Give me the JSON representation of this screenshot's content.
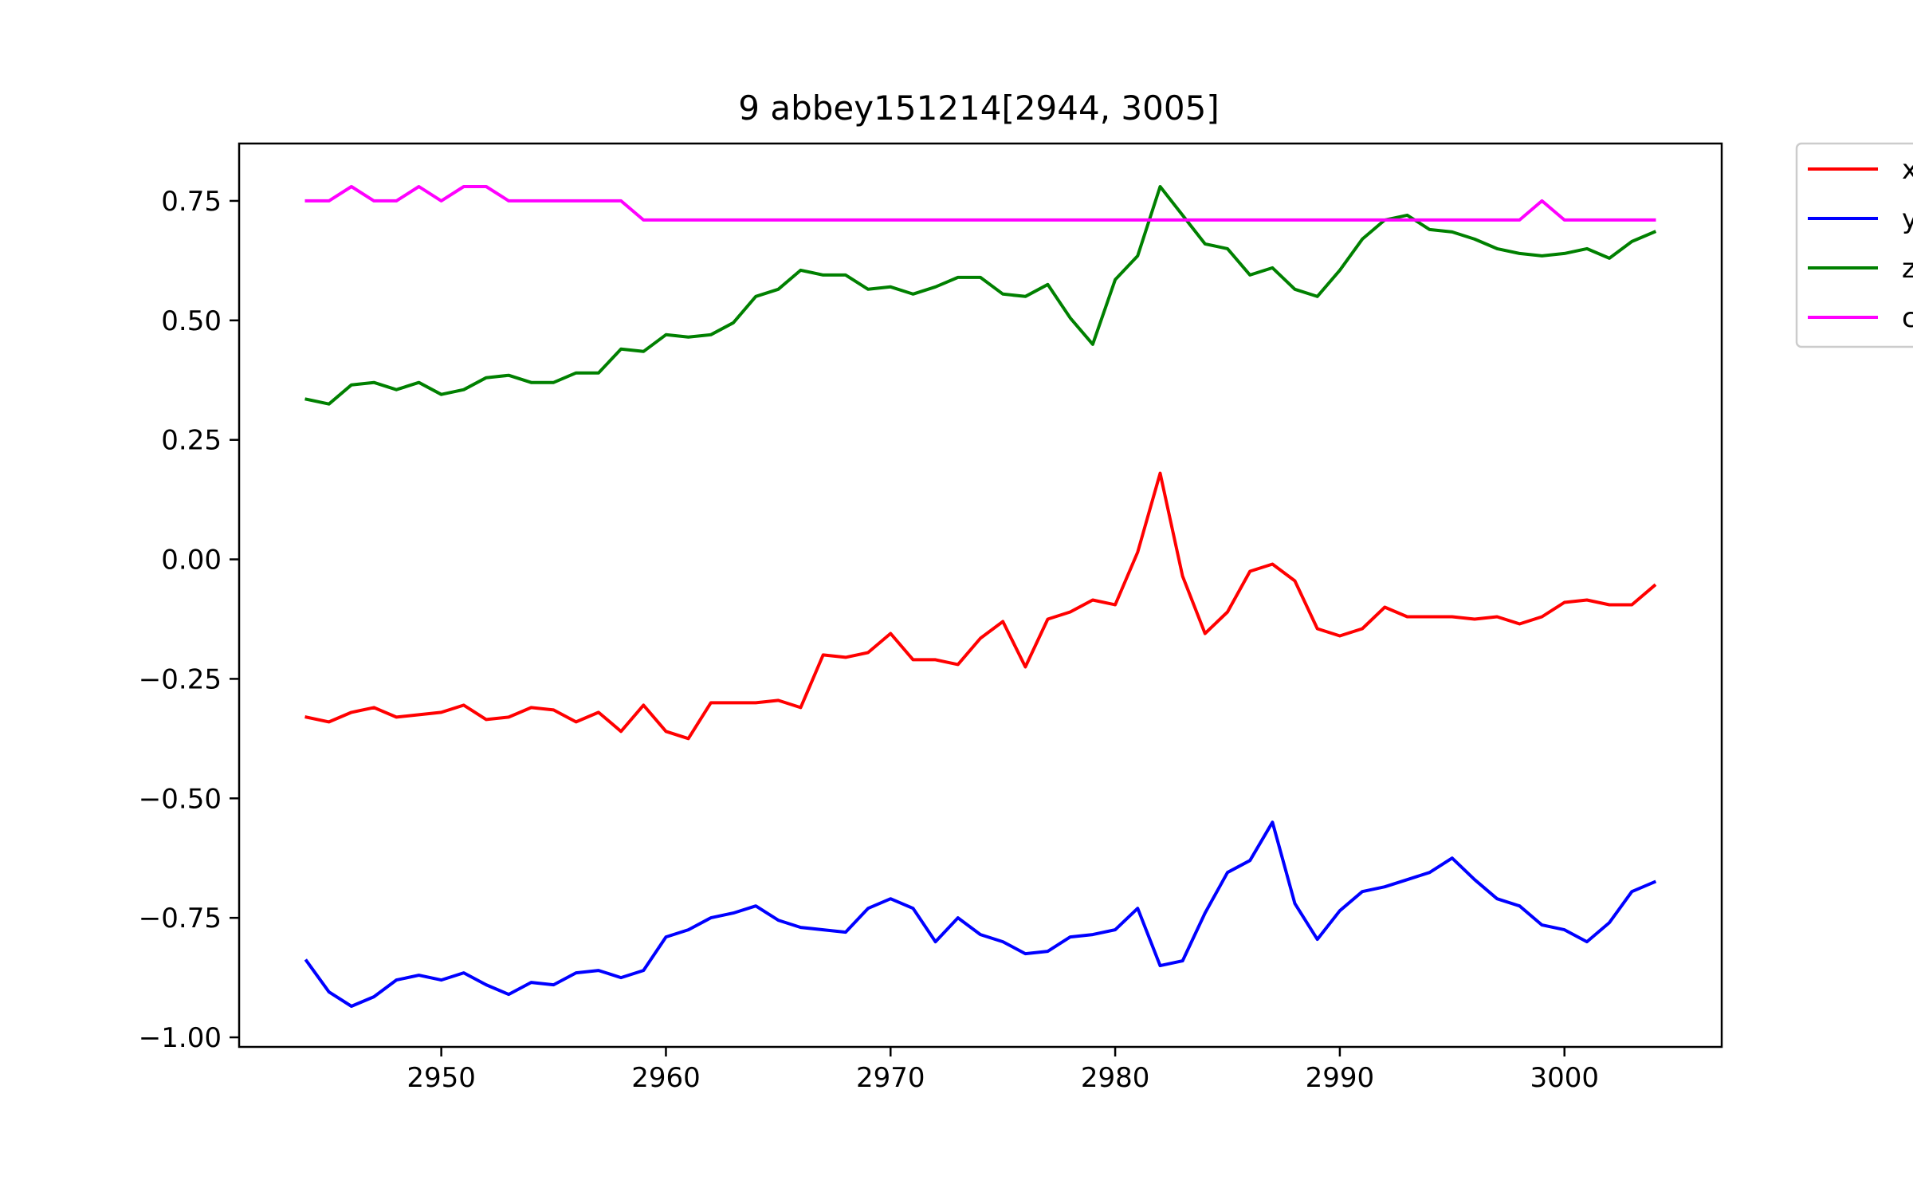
{
  "chart_data": {
    "type": "line",
    "title": "9 abbey151214[2944, 3005]",
    "xlabel": "",
    "ylabel": "",
    "xlim": [
      2941,
      3007
    ],
    "ylim": [
      -1.02,
      0.87
    ],
    "x_ticks": [
      2950,
      2960,
      2970,
      2980,
      2990,
      3000
    ],
    "y_ticks": [
      0.75,
      0.5,
      0.25,
      0.0,
      -0.25,
      -0.5,
      -0.75,
      -1.0
    ],
    "x_tick_labels": [
      "2950",
      "2960",
      "2970",
      "2980",
      "2990",
      "3000"
    ],
    "y_tick_labels": [
      "0.75",
      "0.50",
      "0.25",
      "0.00",
      "−0.25",
      "−0.50",
      "−0.75",
      "−1.00"
    ],
    "grid": false,
    "legend": "outside-top-right",
    "x": [
      2944,
      2945,
      2946,
      2947,
      2948,
      2949,
      2950,
      2951,
      2952,
      2953,
      2954,
      2955,
      2956,
      2957,
      2958,
      2959,
      2960,
      2961,
      2962,
      2963,
      2964,
      2965,
      2966,
      2967,
      2968,
      2969,
      2970,
      2971,
      2972,
      2973,
      2974,
      2975,
      2976,
      2977,
      2978,
      2979,
      2980,
      2981,
      2982,
      2983,
      2984,
      2985,
      2986,
      2987,
      2988,
      2989,
      2990,
      2991,
      2992,
      2993,
      2994,
      2995,
      2996,
      2997,
      2998,
      2999,
      3000,
      3001,
      3002,
      3003,
      3004
    ],
    "series": [
      {
        "name": "x",
        "color": "#ff0000",
        "values": [
          -0.33,
          -0.34,
          -0.32,
          -0.31,
          -0.33,
          -0.325,
          -0.32,
          -0.305,
          -0.335,
          -0.33,
          -0.31,
          -0.315,
          -0.34,
          -0.32,
          -0.36,
          -0.305,
          -0.36,
          -0.375,
          -0.3,
          -0.3,
          -0.3,
          -0.295,
          -0.31,
          -0.2,
          -0.205,
          -0.195,
          -0.155,
          -0.21,
          -0.21,
          -0.22,
          -0.165,
          -0.13,
          -0.225,
          -0.125,
          -0.11,
          -0.085,
          -0.095,
          0.015,
          0.18,
          -0.035,
          -0.155,
          -0.11,
          -0.025,
          -0.01,
          -0.045,
          -0.145,
          -0.16,
          -0.145,
          -0.1,
          -0.12,
          -0.12,
          -0.12,
          -0.125,
          -0.12,
          -0.135,
          -0.12,
          -0.09,
          -0.085,
          -0.095,
          -0.095,
          -0.055
        ]
      },
      {
        "name": "y",
        "color": "#0000ff",
        "values": [
          -0.84,
          -0.905,
          -0.935,
          -0.915,
          -0.88,
          -0.87,
          -0.88,
          -0.865,
          -0.89,
          -0.91,
          -0.885,
          -0.89,
          -0.865,
          -0.86,
          -0.875,
          -0.86,
          -0.79,
          -0.775,
          -0.75,
          -0.74,
          -0.725,
          -0.755,
          -0.77,
          -0.775,
          -0.78,
          -0.73,
          -0.71,
          -0.73,
          -0.8,
          -0.75,
          -0.785,
          -0.8,
          -0.825,
          -0.82,
          -0.79,
          -0.785,
          -0.775,
          -0.73,
          -0.85,
          -0.84,
          -0.74,
          -0.655,
          -0.63,
          -0.55,
          -0.72,
          -0.795,
          -0.735,
          -0.695,
          -0.685,
          -0.67,
          -0.655,
          -0.625,
          -0.67,
          -0.71,
          -0.725,
          -0.765,
          -0.775,
          -0.8,
          -0.76,
          -0.695,
          -0.675
        ]
      },
      {
        "name": "z",
        "color": "#008000",
        "values": [
          0.335,
          0.325,
          0.365,
          0.37,
          0.355,
          0.37,
          0.345,
          0.355,
          0.38,
          0.385,
          0.37,
          0.37,
          0.39,
          0.39,
          0.44,
          0.435,
          0.47,
          0.465,
          0.47,
          0.495,
          0.55,
          0.565,
          0.605,
          0.595,
          0.595,
          0.565,
          0.57,
          0.555,
          0.57,
          0.59,
          0.59,
          0.555,
          0.55,
          0.575,
          0.505,
          0.45,
          0.585,
          0.635,
          0.78,
          0.72,
          0.66,
          0.65,
          0.595,
          0.61,
          0.565,
          0.55,
          0.605,
          0.67,
          0.71,
          0.72,
          0.69,
          0.685,
          0.67,
          0.65,
          0.64,
          0.635,
          0.64,
          0.65,
          0.63,
          0.665,
          0.685
        ]
      },
      {
        "name": "c",
        "color": "#ff00ff",
        "values": [
          0.75,
          0.75,
          0.78,
          0.75,
          0.75,
          0.78,
          0.75,
          0.78,
          0.78,
          0.75,
          0.75,
          0.75,
          0.75,
          0.75,
          0.75,
          0.71,
          0.71,
          0.71,
          0.71,
          0.71,
          0.71,
          0.71,
          0.71,
          0.71,
          0.71,
          0.71,
          0.71,
          0.71,
          0.71,
          0.71,
          0.71,
          0.71,
          0.71,
          0.71,
          0.71,
          0.71,
          0.71,
          0.71,
          0.71,
          0.71,
          0.71,
          0.71,
          0.71,
          0.71,
          0.71,
          0.71,
          0.71,
          0.71,
          0.71,
          0.71,
          0.71,
          0.71,
          0.71,
          0.71,
          0.71,
          0.75,
          0.71,
          0.71,
          0.71,
          0.71,
          0.71
        ]
      }
    ]
  }
}
